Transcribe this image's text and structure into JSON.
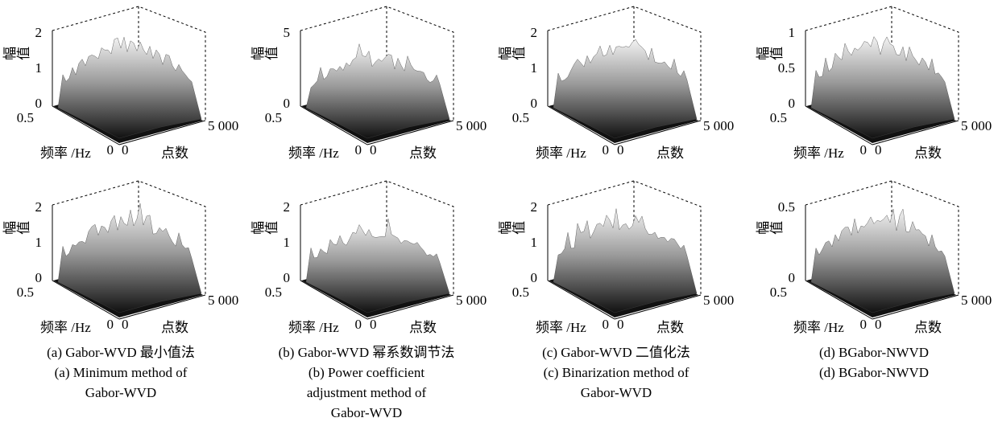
{
  "panels": [
    {
      "z_label": "幅值",
      "z_ticks": [
        "0",
        "1",
        "2"
      ],
      "freq_label": "频率 /Hz",
      "freq_ticks": [
        "0.5",
        "0"
      ],
      "points_label": "点数",
      "points_ticks": [
        "0",
        "5 000"
      ]
    },
    {
      "z_label": "幅值",
      "z_ticks": [
        "0",
        "5"
      ],
      "freq_label": "频率 /Hz",
      "freq_ticks": [
        "0.5",
        "0"
      ],
      "points_label": "点数",
      "points_ticks": [
        "0",
        "5 000"
      ]
    },
    {
      "z_label": "幅值",
      "z_ticks": [
        "0",
        "1",
        "2"
      ],
      "freq_label": "频率 /Hz",
      "freq_ticks": [
        "0.5",
        "0"
      ],
      "points_label": "点数",
      "points_ticks": [
        "0",
        "5 000"
      ]
    },
    {
      "z_label": "幅值",
      "z_ticks": [
        "0",
        "0.5",
        "1"
      ],
      "freq_label": "频率 /Hz",
      "freq_ticks": [
        "0.5",
        "0"
      ],
      "points_label": "点数",
      "points_ticks": [
        "0",
        "5 000"
      ]
    },
    {
      "z_label": "幅值",
      "z_ticks": [
        "0",
        "1",
        "2"
      ],
      "freq_label": "频率 /Hz",
      "freq_ticks": [
        "0.5",
        "0"
      ],
      "points_label": "点数",
      "points_ticks": [
        "0",
        "5 000"
      ]
    },
    {
      "z_label": "幅值",
      "z_ticks": [
        "0",
        "1",
        "2"
      ],
      "freq_label": "频率 /Hz",
      "freq_ticks": [
        "0.5",
        "0"
      ],
      "points_label": "点数",
      "points_ticks": [
        "0",
        "5 000"
      ]
    },
    {
      "z_label": "幅值",
      "z_ticks": [
        "0",
        "1",
        "2"
      ],
      "freq_label": "频率 /Hz",
      "freq_ticks": [
        "0.5",
        "0"
      ],
      "points_label": "点数",
      "points_ticks": [
        "0",
        "5 000"
      ]
    },
    {
      "z_label": "幅值",
      "z_ticks": [
        "0",
        "0.5"
      ],
      "freq_label": "频率 /Hz",
      "freq_ticks": [
        "0.5",
        "0"
      ],
      "points_label": "点数",
      "points_ticks": [
        "0",
        "5 000"
      ]
    }
  ],
  "captions": [
    [
      "(a) Gabor-WVD 最小值法",
      "(a) Minimum method of",
      "Gabor-WVD"
    ],
    [
      "(b) Gabor-WVD 幂系数调节法",
      "(b) Power coefficient",
      "adjustment method of",
      "Gabor-WVD"
    ],
    [
      "(c) Gabor-WVD 二值化法",
      "(c) Binarization method of",
      "Gabor-WVD"
    ],
    [
      "(d) BGabor-NWVD",
      "(d) BGabor-NWVD"
    ]
  ]
}
